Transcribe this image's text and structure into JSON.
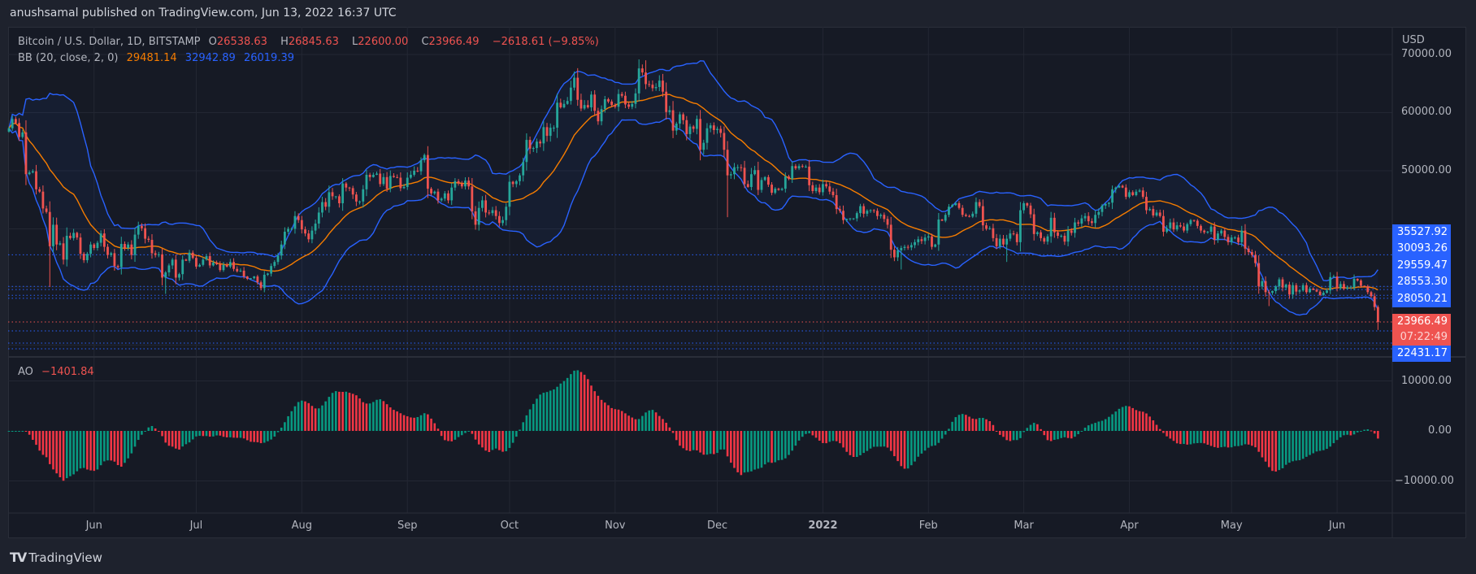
{
  "header": {
    "publish_line": "anushsamal published on TradingView.com, Jun 13, 2022 16:37 UTC"
  },
  "legend": {
    "symbol": "Bitcoin / U.S. Dollar, 1D, BITSTAMP",
    "o_label": "O",
    "o": "26538.63",
    "h_label": "H",
    "h": "26845.63",
    "l_label": "L",
    "l": "22600.00",
    "c_label": "C",
    "c": "23966.49",
    "change": "−2618.61 (−9.85%)",
    "bb_label": "BB (20, close, 2, 0)",
    "bb_basis": "29481.14",
    "bb_upper": "32942.89",
    "bb_lower": "26019.39"
  },
  "ao_legend": {
    "label": "AO",
    "value": "−1401.84"
  },
  "price_axis": {
    "currency": "USD",
    "ticks": [
      {
        "value": 70000,
        "label": "70000.00"
      },
      {
        "value": 60000,
        "label": "60000.00"
      },
      {
        "value": 50000,
        "label": "50000.00"
      }
    ],
    "level_tags": [
      {
        "label": "35527.92",
        "value": 35527.92
      },
      {
        "label": "30093.26",
        "value": 30093.26
      },
      {
        "label": "29559.47",
        "value": 29559.47
      },
      {
        "label": "28553.30",
        "value": 28553.3
      },
      {
        "label": "28050.21",
        "value": 28050.21
      },
      {
        "label": "22431.17",
        "value": 22431.17
      }
    ],
    "unlabeled_levels": [
      20330,
      19350
    ],
    "last_price": {
      "label": "23966.49",
      "countdown": "07:22:49",
      "value": 23966.49
    }
  },
  "ao_axis": {
    "ticks": [
      {
        "value": 10000,
        "label": "10000.00"
      },
      {
        "value": 0,
        "label": "0.00"
      },
      {
        "value": -10000,
        "label": "−10000.00"
      }
    ]
  },
  "time_axis": [
    {
      "label": "Jun",
      "date": "2021-06-01"
    },
    {
      "label": "Jul",
      "date": "2021-07-01"
    },
    {
      "label": "Aug",
      "date": "2021-08-01"
    },
    {
      "label": "Sep",
      "date": "2021-09-01"
    },
    {
      "label": "Oct",
      "date": "2021-10-01"
    },
    {
      "label": "Nov",
      "date": "2021-11-01"
    },
    {
      "label": "Dec",
      "date": "2021-12-01"
    },
    {
      "label": "2022",
      "date": "2022-01-01"
    },
    {
      "label": "Feb",
      "date": "2022-02-01"
    },
    {
      "label": "Mar",
      "date": "2022-03-01"
    },
    {
      "label": "Apr",
      "date": "2022-04-01"
    },
    {
      "label": "May",
      "date": "2022-05-01"
    },
    {
      "label": "Jun",
      "date": "2022-06-01"
    }
  ],
  "brand": {
    "name": "TradingView",
    "logo": "TV"
  },
  "colors": {
    "up": "#26a69a",
    "down": "#ef5350",
    "ao_up": "#089981",
    "ao_down": "#f23645",
    "bb_basis": "#f57c00",
    "bb_band": "#2962ff",
    "level": "#2962ff",
    "last": "#ef5350"
  },
  "chart_data": {
    "type": "candlestick",
    "interval": "1D",
    "first_date": "2021-05-07",
    "last_candle": {
      "open": 26538.63,
      "high": 26845.63,
      "low": 22600.0,
      "close": 23966.49
    },
    "ylim": [
      17000,
      74000
    ],
    "ao_ylim": [
      -16000,
      14000
    ],
    "indicators": [
      "BB (20, close, 2, 0)",
      "AO"
    ],
    "wick_extremes": [
      {
        "date": "2021-05-19",
        "low": 30000
      },
      {
        "date": "2021-06-22",
        "low": 28800
      },
      {
        "date": "2021-11-10",
        "high": 69000
      },
      {
        "date": "2021-12-04",
        "low": 42000
      },
      {
        "date": "2022-01-24",
        "low": 33000
      },
      {
        "date": "2022-02-24",
        "low": 34300
      },
      {
        "date": "2022-05-12",
        "low": 26700
      }
    ],
    "closes": [
      57300,
      58900,
      58200,
      55800,
      56600,
      49400,
      49700,
      49900,
      46800,
      46400,
      43500,
      42900,
      37000,
      40700,
      37300,
      37500,
      34700,
      38800,
      38400,
      39300,
      38500,
      35700,
      34600,
      35700,
      37300,
      36700,
      37600,
      39200,
      36900,
      35500,
      35800,
      33600,
      33400,
      37400,
      36700,
      37300,
      35500,
      39000,
      40500,
      40100,
      38300,
      38100,
      35800,
      35500,
      35600,
      31600,
      32500,
      33700,
      34700,
      31600,
      32200,
      34700,
      34500,
      35900,
      35000,
      33500,
      33800,
      34700,
      35300,
      33700,
      34200,
      33900,
      32900,
      33800,
      33500,
      34300,
      33100,
      32700,
      32800,
      31800,
      31400,
      31500,
      31800,
      30800,
      29800,
      32100,
      32300,
      33600,
      34300,
      35400,
      37300,
      39500,
      40000,
      40000,
      42200,
      41500,
      39900,
      39200,
      38200,
      39700,
      40900,
      42800,
      44600,
      43800,
      46300,
      45600,
      45600,
      44400,
      47800,
      47100,
      47000,
      45900,
      44700,
      44700,
      46800,
      49300,
      48900,
      49300,
      49500,
      47700,
      48900,
      46900,
      49100,
      48900,
      48800,
      47000,
      47200,
      48800,
      49300,
      50000,
      49900,
      51800,
      52700,
      46900,
      46100,
      46400,
      44900,
      45200,
      46100,
      44900,
      47100,
      48200,
      47800,
      47300,
      48300,
      47300,
      43000,
      40700,
      43600,
      44900,
      42800,
      42700,
      43200,
      42200,
      41000,
      41500,
      43800,
      48100,
      47700,
      48200,
      49200,
      51500,
      55300,
      53800,
      53900,
      55000,
      54700,
      57500,
      56000,
      57400,
      57400,
      61700,
      60900,
      61500,
      62000,
      64300,
      66000,
      62200,
      60700,
      61300,
      60900,
      63100,
      60300,
      58500,
      60600,
      62300,
      61900,
      61300,
      61000,
      63200,
      62900,
      61400,
      61000,
      61500,
      63300,
      67600,
      66900,
      64900,
      64800,
      64200,
      64400,
      65500,
      63600,
      60100,
      60400,
      56900,
      58100,
      59700,
      58700,
      56300,
      57600,
      57200,
      58900,
      53600,
      54800,
      57300,
      57800,
      57000,
      57200,
      56500,
      53600,
      49200,
      49400,
      50600,
      50600,
      50500,
      47700,
      47200,
      49400,
      50100,
      46700,
      48400,
      48900,
      47600,
      46200,
      46900,
      46700,
      46900,
      49000,
      48600,
      50800,
      50400,
      50800,
      50700,
      50700,
      47500,
      46500,
      47100,
      46300,
      47700,
      47300,
      46400,
      45800,
      43400,
      43100,
      41500,
      41700,
      41800,
      41800,
      42700,
      43900,
      42600,
      43100,
      43200,
      43100,
      42200,
      42400,
      41700,
      40700,
      36400,
      35100,
      36300,
      36700,
      36900,
      36800,
      37200,
      37700,
      38200,
      37900,
      38500,
      38700,
      36900,
      37300,
      41600,
      41400,
      42400,
      43800,
      44100,
      44400,
      43600,
      42400,
      42200,
      42100,
      42600,
      44600,
      43900,
      40600,
      40000,
      40100,
      38400,
      37000,
      38300,
      37300,
      38300,
      39200,
      39100,
      37700,
      43200,
      44400,
      44000,
      42500,
      39100,
      39400,
      38400,
      37800,
      38700,
      41900,
      39400,
      38800,
      38800,
      37800,
      39700,
      39300,
      41100,
      40900,
      41800,
      42200,
      41300,
      41000,
      42400,
      42900,
      44000,
      44300,
      44500,
      46800,
      47100,
      47400,
      47100,
      45500,
      46300,
      45800,
      46400,
      46600,
      45500,
      43200,
      43400,
      42300,
      42800,
      42200,
      39500,
      40100,
      41100,
      39900,
      40600,
      40400,
      39700,
      40800,
      41500,
      41400,
      40500,
      39700,
      39400,
      39500,
      40400,
      38100,
      39200,
      39700,
      38600,
      37700,
      38500,
      38500,
      37700,
      39700,
      36600,
      36000,
      35500,
      34100,
      30100,
      31000,
      29100,
      29000,
      29300,
      30100,
      31300,
      29900,
      30400,
      28700,
      30300,
      29200,
      29400,
      30300,
      29100,
      29700,
      29500,
      29200,
      28600,
      29000,
      29400,
      31700,
      31800,
      29800,
      30500,
      29700,
      29900,
      29900,
      31400,
      31100,
      30200,
      30100,
      29100,
      28400,
      26538.63,
      23966.49
    ]
  }
}
